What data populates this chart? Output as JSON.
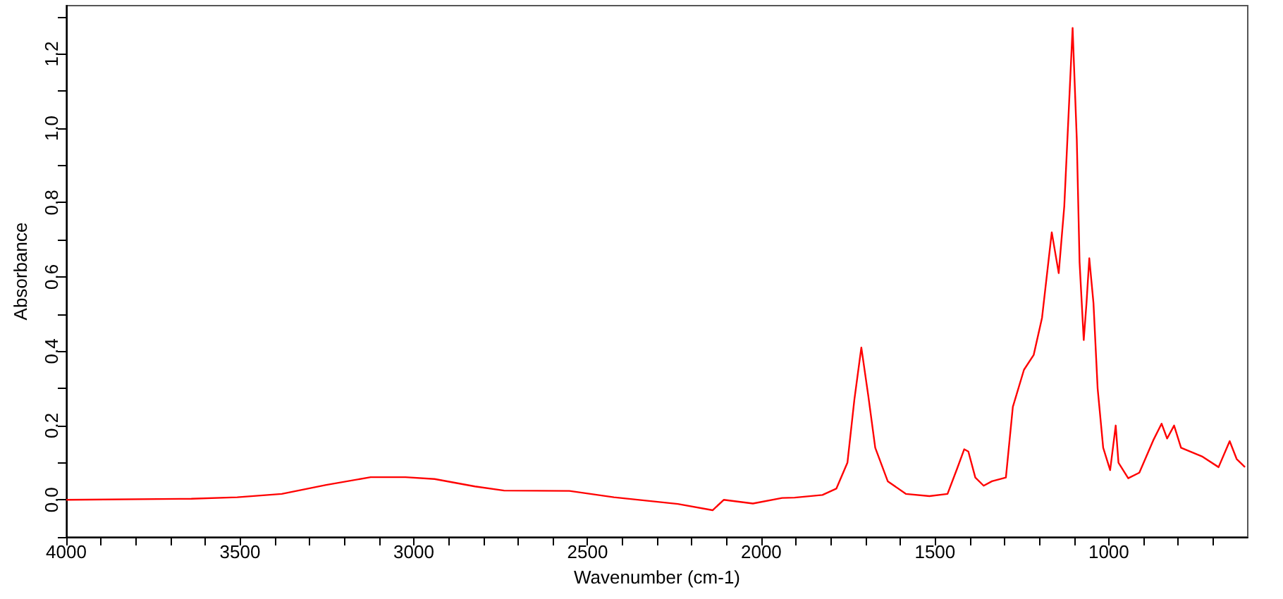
{
  "chart_data": {
    "type": "line",
    "xlabel": "Wavenumber (cm-1)",
    "ylabel": "Absorbance",
    "xlim": [
      4000,
      600
    ],
    "ylim": [
      -0.1,
      1.33
    ],
    "xticks": [
      4000,
      {
        "value": 3900,
        "label": null
      },
      {
        "value": 3800,
        "label": null
      },
      {
        "value": 3700,
        "label": null
      },
      {
        "value": 3600,
        "label": null
      },
      3500,
      {
        "value": 3400,
        "label": null
      },
      {
        "value": 3300,
        "label": null
      },
      {
        "value": 3200,
        "label": null
      },
      {
        "value": 3100,
        "label": null
      },
      3000,
      {
        "value": 2900,
        "label": null
      },
      {
        "value": 2800,
        "label": null
      },
      {
        "value": 2700,
        "label": null
      },
      {
        "value": 2600,
        "label": null
      },
      2500,
      {
        "value": 2400,
        "label": null
      },
      {
        "value": 2300,
        "label": null
      },
      {
        "value": 2200,
        "label": null
      },
      {
        "value": 2100,
        "label": null
      },
      2000,
      {
        "value": 1900,
        "label": null
      },
      {
        "value": 1800,
        "label": null
      },
      {
        "value": 1700,
        "label": null
      },
      {
        "value": 1600,
        "label": null
      },
      1500,
      {
        "value": 1400,
        "label": null
      },
      {
        "value": 1300,
        "label": null
      },
      {
        "value": 1200,
        "label": null
      },
      {
        "value": 1100,
        "label": null
      },
      1000,
      {
        "value": 900,
        "label": null
      },
      {
        "value": 800,
        "label": null
      },
      {
        "value": 700,
        "label": null
      }
    ],
    "yticks": [
      {
        "value": -0.1,
        "label": null
      },
      {
        "value": 0,
        "label": "0.0"
      },
      {
        "value": 0.1,
        "label": null
      },
      {
        "value": 0.2,
        "label": "0.2"
      },
      {
        "value": 0.3,
        "label": null
      },
      {
        "value": 0.4,
        "label": "0.4"
      },
      {
        "value": 0.5,
        "label": null
      },
      {
        "value": 0.6,
        "label": "0.6"
      },
      {
        "value": 0.7,
        "label": null
      },
      {
        "value": 0.8,
        "label": "0.8"
      },
      {
        "value": 0.9,
        "label": null
      },
      {
        "value": 1.0,
        "label": "1.0"
      },
      {
        "value": 1.1,
        "label": null
      },
      {
        "value": 1.2,
        "label": "1.2"
      },
      {
        "value": 1.3,
        "label": null
      }
    ],
    "grid": false,
    "marker": "none",
    "line_style": "solid",
    "series": [
      {
        "color": "#ff0000",
        "x": [
          4000,
          3640,
          3508,
          3380,
          3252,
          3124,
          3024,
          2940,
          2824,
          2740,
          2552,
          2424,
          2240,
          2140,
          2108,
          2024,
          1940,
          1904,
          1824,
          1784,
          1752,
          1732,
          1712,
          1692,
          1672,
          1636,
          1584,
          1516,
          1464,
          1436,
          1416,
          1404,
          1384,
          1360,
          1336,
          1296,
          1276,
          1244,
          1216,
          1192,
          1164,
          1144,
          1128,
          1116,
          1104,
          1092,
          1084,
          1072,
          1064,
          1056,
          1044,
          1032,
          1016,
          996,
          980,
          972,
          944,
          912,
          872,
          848,
          832,
          812,
          792,
          732,
          684,
          652,
          632,
          608
        ],
        "values": [
          0.0,
          0.003,
          0.007,
          0.016,
          0.04,
          0.061,
          0.061,
          0.056,
          0.036,
          0.025,
          0.024,
          0.007,
          -0.011,
          -0.028,
          0.0,
          -0.01,
          0.005,
          0.006,
          0.013,
          0.03,
          0.1,
          0.27,
          0.41,
          0.28,
          0.14,
          0.05,
          0.016,
          0.01,
          0.016,
          0.085,
          0.136,
          0.13,
          0.06,
          0.038,
          0.05,
          0.06,
          0.25,
          0.35,
          0.39,
          0.49,
          0.72,
          0.61,
          0.79,
          1.03,
          1.27,
          0.97,
          0.64,
          0.43,
          0.53,
          0.65,
          0.53,
          0.3,
          0.14,
          0.08,
          0.2,
          0.1,
          0.058,
          0.073,
          0.16,
          0.205,
          0.165,
          0.2,
          0.14,
          0.117,
          0.088,
          0.158,
          0.11,
          0.088
        ]
      }
    ]
  }
}
